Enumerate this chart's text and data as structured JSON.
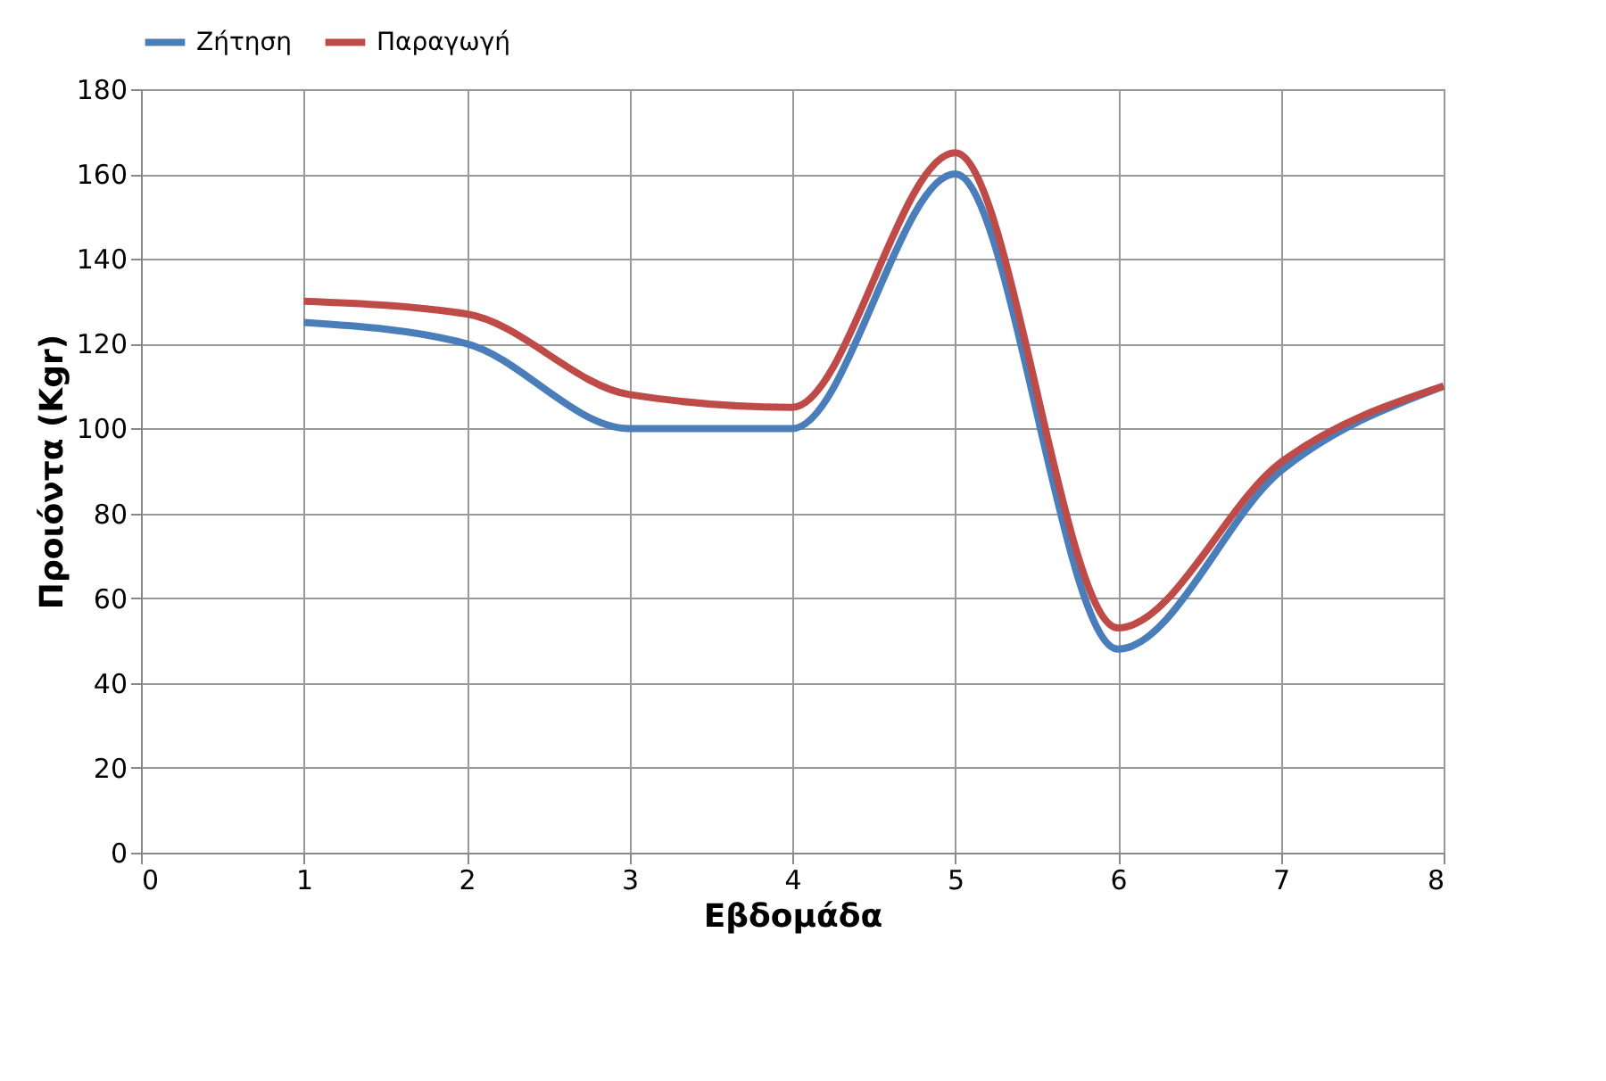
{
  "chart_data": {
    "type": "line",
    "xlabel": "Εβδομάδα",
    "ylabel": "Προιόντα (Kgr)",
    "x": [
      1,
      2,
      3,
      4,
      5,
      6,
      7,
      8
    ],
    "series": [
      {
        "name": "Ζήτηση",
        "color": "#4a7ebb",
        "values": [
          125,
          120,
          100,
          100,
          160,
          48,
          90,
          110
        ]
      },
      {
        "name": "Παραγωγή",
        "color": "#be4b48",
        "values": [
          130,
          127,
          108,
          105,
          165,
          53,
          92,
          110
        ]
      }
    ],
    "xlim": [
      0,
      8
    ],
    "xticks": [
      0,
      1,
      2,
      3,
      4,
      5,
      6,
      7,
      8
    ],
    "ylim": [
      0,
      180
    ],
    "yticks": [
      0,
      20,
      40,
      60,
      80,
      100,
      120,
      140,
      160,
      180
    ],
    "grid": true,
    "legend": "top",
    "marker": "none",
    "line_style": "solid"
  }
}
